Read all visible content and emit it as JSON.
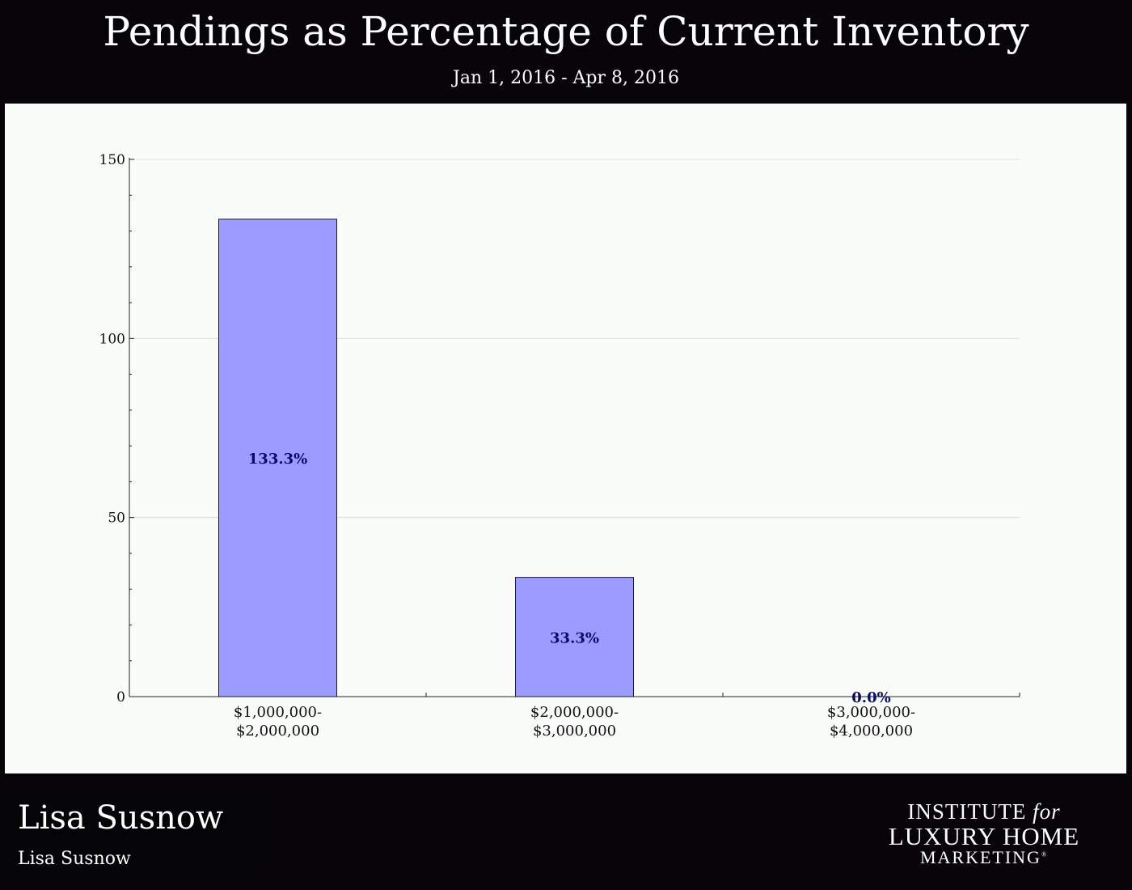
{
  "header": {
    "title": "Pendings as Percentage of Current Inventory",
    "subtitle": "Jan 1, 2016 - Apr 8, 2016"
  },
  "footer": {
    "agent_name": "Lisa Susnow",
    "agent_sub": "Lisa Susnow",
    "logo": {
      "line1_main": "INSTITUTE",
      "line1_italic": "for",
      "line2": "LUXURY HOME",
      "line3": "MARKETING",
      "mark": "®"
    }
  },
  "colors": {
    "background": "#060409",
    "panel": "#fafcfa",
    "bar_fill": "#9c9cff",
    "bar_stroke": "#1a1a2a",
    "bar_label": "#0a0a6e",
    "grid": "#dcdcdc"
  },
  "chart_data": {
    "type": "bar",
    "title": "Pendings as Percentage of Current Inventory",
    "subtitle": "Jan 1, 2016 - Apr 8, 2016",
    "xlabel": "",
    "ylabel": "",
    "categories": [
      [
        "$1,000,000-",
        "$2,000,000"
      ],
      [
        "$2,000,000-",
        "$3,000,000"
      ],
      [
        "$3,000,000-",
        "$4,000,000"
      ]
    ],
    "values": [
      133.3,
      33.3,
      0.0
    ],
    "data_labels": [
      "133.3%",
      "33.3%",
      "0.0%"
    ],
    "ylim": [
      0,
      150
    ],
    "yticks": [
      0,
      50,
      100,
      150
    ],
    "grid": true,
    "legend": "none"
  }
}
